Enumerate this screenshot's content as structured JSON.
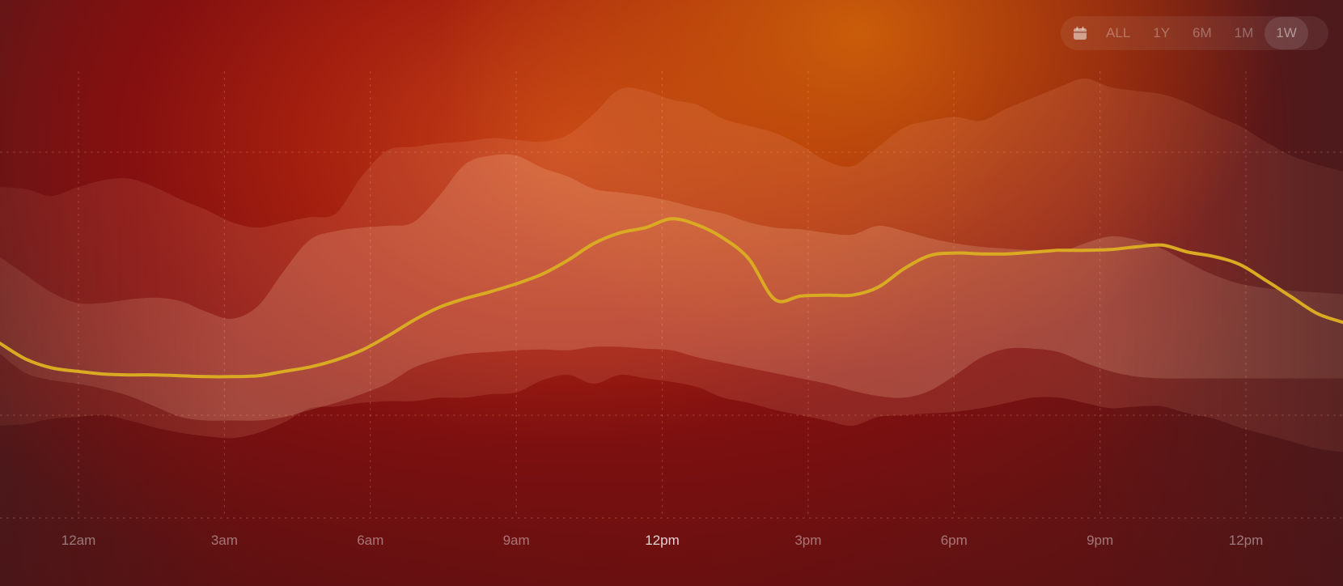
{
  "range_selector": {
    "icon": "calendar-icon",
    "options": [
      "ALL",
      "1Y",
      "6M",
      "1M",
      "1W"
    ],
    "selected": "1W"
  },
  "colors": {
    "line": "#d9aa22",
    "band_outer": "#f0a080",
    "band_middle": "#ffd0b0",
    "band_inner": "#ffe6d6",
    "grid": "#ffb49a"
  },
  "chart_data": {
    "type": "line",
    "x_ticks": [
      "12am",
      "3am",
      "6am",
      "9am",
      "12pm",
      "3pm",
      "6pm",
      "9pm",
      "12pm"
    ],
    "active_tick": "12pm",
    "grid": true,
    "y_gridlines": 3,
    "x": [
      0,
      0.5,
      1,
      1.5,
      2,
      2.5,
      3,
      3.5,
      4,
      4.5,
      5,
      5.5,
      6,
      6.5,
      7,
      7.5,
      8,
      8.5,
      9,
      9.5,
      10,
      10.5,
      11,
      11.5,
      12,
      12.5,
      13,
      13.5,
      14,
      14.5,
      15,
      15.5,
      16,
      16.5,
      17,
      17.5,
      18,
      18.5,
      19,
      19.5,
      20,
      20.5,
      21,
      21.5,
      22,
      22.5,
      23,
      23.5,
      24,
      24.5,
      25,
      25.5,
      26
    ],
    "series": [
      {
        "role": "line",
        "values": [
          4.82,
          4.64,
          4.54,
          4.5,
          4.47,
          4.46,
          4.46,
          4.45,
          4.44,
          4.44,
          4.45,
          4.5,
          4.55,
          4.63,
          4.74,
          4.9,
          5.08,
          5.23,
          5.33,
          5.41,
          5.5,
          5.61,
          5.77,
          5.96,
          6.08,
          6.14,
          6.24,
          6.17,
          6.02,
          5.78,
          5.32,
          5.36,
          5.37,
          5.37,
          5.46,
          5.67,
          5.82,
          5.85,
          5.84,
          5.84,
          5.86,
          5.88,
          5.88,
          5.89,
          5.92,
          5.94,
          5.86,
          5.81,
          5.72,
          5.54,
          5.35,
          5.16,
          5.06
        ]
      },
      {
        "role": "band_inner",
        "upper": [
          5.8,
          5.6,
          5.4,
          5.28,
          5.28,
          5.32,
          5.34,
          5.3,
          5.18,
          5.1,
          5.25,
          5.65,
          6.0,
          6.1,
          6.14,
          6.16,
          6.2,
          6.5,
          6.86,
          6.96,
          6.96,
          6.82,
          6.72,
          6.58,
          6.54,
          6.5,
          6.44,
          6.36,
          6.3,
          6.2,
          6.14,
          6.12,
          6.08,
          6.06,
          6.16,
          6.1,
          6.02,
          5.96,
          5.92,
          5.9,
          5.88,
          5.86,
          5.96,
          6.04,
          6.0,
          5.9,
          5.74,
          5.6,
          5.5,
          5.45,
          5.42,
          5.4,
          5.38
        ],
        "lower": [
          4.7,
          4.48,
          4.4,
          4.36,
          4.3,
          4.22,
          4.1,
          3.98,
          3.94,
          3.94,
          3.94,
          3.98,
          4.06,
          4.14,
          4.24,
          4.36,
          4.54,
          4.64,
          4.7,
          4.72,
          4.74,
          4.75,
          4.74,
          4.78,
          4.78,
          4.76,
          4.74,
          4.66,
          4.6,
          4.54,
          4.48,
          4.42,
          4.36,
          4.28,
          4.22,
          4.2,
          4.28,
          4.46,
          4.66,
          4.76,
          4.76,
          4.72,
          4.6,
          4.5,
          4.44,
          4.42,
          4.42,
          4.42,
          4.42,
          4.42,
          4.42,
          4.42,
          4.42
        ]
      },
      {
        "role": "band_middle",
        "upper": [
          6.6,
          6.58,
          6.5,
          6.6,
          6.68,
          6.7,
          6.6,
          6.46,
          6.34,
          6.2,
          6.14,
          6.2,
          6.26,
          6.3,
          6.72,
          7.02,
          7.06,
          7.1,
          7.12,
          7.16,
          7.14,
          7.12,
          7.2,
          7.44,
          7.72,
          7.7,
          7.6,
          7.54,
          7.38,
          7.3,
          7.22,
          7.08,
          6.9,
          6.84,
          7.06,
          7.28,
          7.36,
          7.4,
          7.36,
          7.5,
          7.62,
          7.74,
          7.84,
          7.74,
          7.7,
          7.66,
          7.56,
          7.42,
          7.3,
          7.12,
          6.96,
          6.86,
          6.78
        ],
        "lower": [
          3.88,
          3.9,
          3.96,
          3.98,
          4.0,
          3.94,
          3.86,
          3.8,
          3.76,
          3.74,
          3.8,
          3.92,
          4.08,
          4.1,
          4.14,
          4.16,
          4.16,
          4.2,
          4.2,
          4.24,
          4.26,
          4.4,
          4.46,
          4.36,
          4.46,
          4.42,
          4.38,
          4.32,
          4.2,
          4.14,
          4.06,
          4.0,
          3.94,
          3.88,
          3.98,
          4.0,
          4.02,
          4.04,
          4.08,
          4.14,
          4.2,
          4.2,
          4.14,
          4.08,
          4.1,
          4.1,
          4.02,
          3.96,
          3.86,
          3.78,
          3.7,
          3.62,
          3.58
        ]
      }
    ]
  }
}
